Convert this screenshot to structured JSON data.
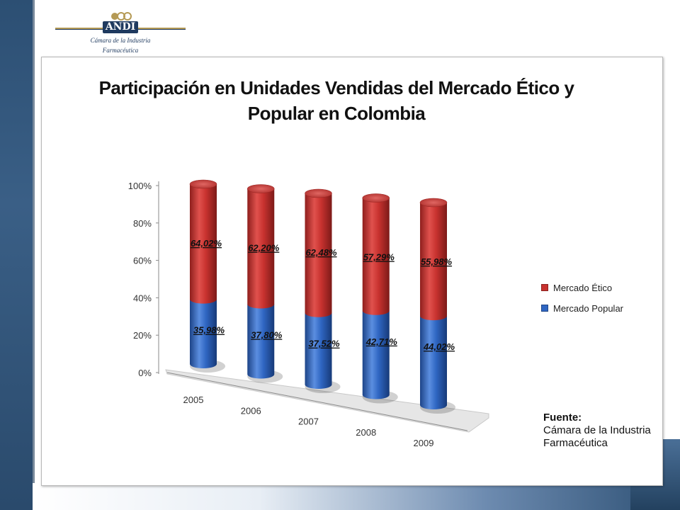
{
  "header": {
    "logo_text": "ANDI",
    "subtitle_line1": "Cámara de la Industria",
    "subtitle_line2": "Farmacéutica"
  },
  "source": {
    "heading": "Fuente:",
    "line1": "Cámara de la Industria",
    "line2": "Farmacéutica"
  },
  "colors": {
    "etico": "#c8322f",
    "popular": "#2f66c2",
    "background_band": "#2c4f73"
  },
  "chart_data": {
    "type": "bar",
    "stacked": true,
    "three_d": "cylinder",
    "title": "Participación en Unidades Vendidas del Mercado Ético y Popular en Colombia",
    "categories": [
      "2005",
      "2006",
      "2007",
      "2008",
      "2009"
    ],
    "series": [
      {
        "name": "Mercado Popular",
        "values": [
          35.98,
          37.8,
          37.52,
          42.71,
          44.02
        ],
        "labels": [
          "35,98%",
          "37,80%",
          "37,52%",
          "42,71%",
          "44,02%"
        ]
      },
      {
        "name": "Mercado Ético",
        "values": [
          64.02,
          62.2,
          62.48,
          57.29,
          55.98
        ],
        "labels": [
          "64,02%",
          "62,20%",
          "62,48%",
          "57,29%",
          "55,98%"
        ]
      }
    ],
    "yticks": [
      "0%",
      "20%",
      "40%",
      "60%",
      "80%",
      "100%"
    ],
    "ylim": [
      0,
      100
    ],
    "legend_position": "right",
    "legend_order": [
      "Mercado Ético",
      "Mercado Popular"
    ]
  }
}
